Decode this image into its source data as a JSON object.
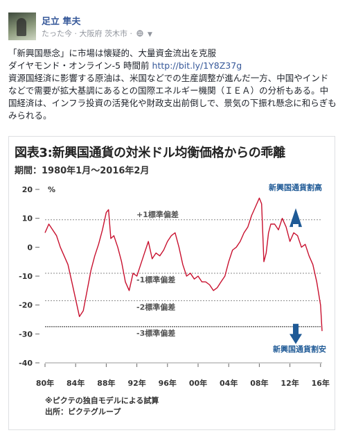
{
  "post": {
    "author": "足立 隼夫",
    "time": "たった今",
    "location": "大阪府 茨木市",
    "separator": "·",
    "privacy_icon": "globe-icon",
    "menu_icon": "caret-down-icon",
    "headline": "「新興国懸念」に市場は懐疑的、大量資金流出を克服",
    "source": "ダイヤモンド・オンライン-5 時間前",
    "link": "http://bit.ly/1Y8Z37g",
    "paragraph": "資源国経済に影響する原油は、米国などでの生産調整が進んだ一方、中国やインドなどで需要が拡大基調にあるとの国際エネルギー機関（ＩＥＡ）の分析もある。中国経済は、インフラ投資の活発化や財政支出前倒しで、景気の下振れ懸念に和らぎもみられる。"
  },
  "figure": {
    "title": "図表3:新興国通貨の対米ドル均衡価格からの乖離",
    "period": "期間：1980年1月～2016年2月",
    "note1": "※ピクテの独自モデルによる試算",
    "note2": "出所：ピクテグループ"
  },
  "colors": {
    "line": "#c8102e",
    "arrow": "#1f5a96",
    "link": "#365899"
  },
  "chart_data": {
    "type": "line",
    "x_label_unit": "%",
    "xticks": [
      "80年",
      "84年",
      "88年",
      "92年",
      "96年",
      "00年",
      "04年",
      "08年",
      "12年",
      "16年"
    ],
    "yticks": [
      20,
      10,
      0,
      -10,
      -20,
      -30,
      -40
    ],
    "ylim": [
      -40,
      20
    ],
    "xlim": [
      1980,
      2016.2
    ],
    "band_labels": [
      "+1標準偏差",
      "-1標準偏差",
      "-2標準偏差",
      "-3標準偏差"
    ],
    "band_values": [
      9.5,
      -9,
      -18.5,
      -27.5
    ],
    "annotation_up": "新興国通貨割高",
    "annotation_down": "新興国通貨割安",
    "series": [
      {
        "x": [
          1980.0,
          1980.5,
          1981.0,
          1981.5,
          1982.0,
          1982.5,
          1983.0,
          1983.5,
          1984.0,
          1984.5,
          1985.0,
          1985.5,
          1986.0,
          1986.5,
          1987.0,
          1987.5,
          1988.0,
          1988.3,
          1988.6,
          1989.0,
          1989.5,
          1990.0,
          1990.5,
          1991.0,
          1991.5,
          1992.0,
          1992.5,
          1993.0,
          1993.5,
          1994.0,
          1994.5,
          1995.0,
          1995.5,
          1996.0,
          1996.5,
          1997.0,
          1997.5,
          1998.0,
          1998.5,
          1999.0,
          1999.5,
          2000.0,
          2000.5,
          2001.0,
          2001.5,
          2002.0,
          2002.5,
          2003.0,
          2003.5,
          2004.0,
          2004.5,
          2005.0,
          2005.5,
          2006.0,
          2006.5,
          2007.0,
          2007.5,
          2008.0,
          2008.3,
          2008.6,
          2008.9,
          2009.2,
          2009.5,
          2010.0,
          2010.5,
          2011.0,
          2011.5,
          2012.0,
          2012.5,
          2013.0,
          2013.5,
          2014.0,
          2014.5,
          2015.0,
          2015.5,
          2016.0,
          2016.2
        ],
        "y": [
          5,
          8,
          6,
          4,
          0,
          -3,
          -6,
          -12,
          -18,
          -24,
          -22,
          -15,
          -8,
          -3,
          1,
          6,
          12,
          13,
          3,
          4,
          0,
          -5,
          -12,
          -15,
          -9,
          -10,
          -6,
          -2,
          2,
          -4,
          -2,
          -3,
          -1,
          2,
          4,
          5,
          0,
          -6,
          -10,
          -9,
          -11,
          -10,
          -12,
          -12,
          -13,
          -15,
          -14,
          -12,
          -10,
          -5,
          -1,
          0,
          2,
          5,
          7,
          11,
          14,
          17,
          15,
          -5,
          -2,
          5,
          8,
          8,
          6,
          10,
          7,
          2,
          5,
          4,
          0,
          1,
          -3,
          -6,
          -12,
          -20,
          -29
        ]
      }
    ]
  }
}
